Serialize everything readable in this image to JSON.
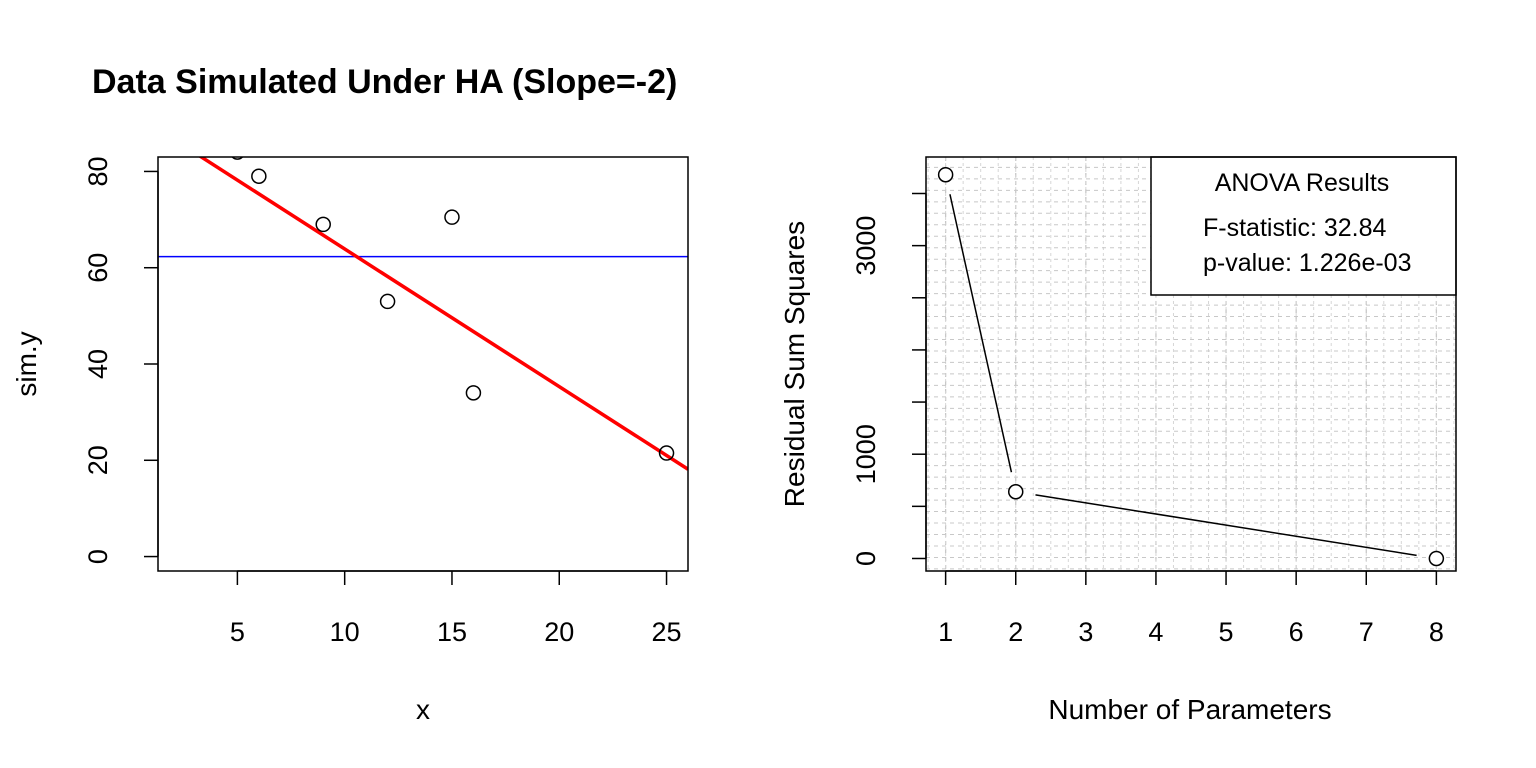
{
  "chart_data": [
    {
      "type": "scatter",
      "title": "Data Simulated Under HA (Slope=-2)",
      "xlabel": "x",
      "ylabel": "sim.y",
      "xlim": [
        1.3,
        26.0
      ],
      "ylim": [
        -3.0,
        83.0
      ],
      "xticks": [
        5,
        10,
        15,
        20,
        25
      ],
      "yticks": [
        0,
        20,
        40,
        60,
        80
      ],
      "points": [
        {
          "x": 5,
          "y": 84
        },
        {
          "x": 6,
          "y": 79
        },
        {
          "x": 9,
          "y": 69
        },
        {
          "x": 12,
          "y": 53
        },
        {
          "x": 15,
          "y": 70.5
        },
        {
          "x": 16,
          "y": 34
        },
        {
          "x": 25,
          "y": 21.5
        }
      ],
      "hline": {
        "y": 62.3,
        "color": "#0000ff"
      },
      "fit_line": {
        "intercept": 92.5,
        "slope": -2.86,
        "color": "#ff0000"
      }
    },
    {
      "type": "line",
      "title": "",
      "xlabel": "Number of Parameters",
      "ylabel": "Residual Sum Squares",
      "xlim": [
        0.72,
        8.28
      ],
      "ylim": [
        -120,
        3850
      ],
      "xticks": [
        1,
        2,
        3,
        4,
        5,
        6,
        7,
        8
      ],
      "yticks": [
        0,
        1000,
        2000,
        3000
      ],
      "ytick_labels": [
        "0",
        "1000",
        "",
        "3000"
      ],
      "grid": true,
      "x": [
        1,
        2,
        8
      ],
      "y": [
        3680,
        640,
        0
      ],
      "legend": {
        "position": "top-right",
        "title": "ANOVA Results",
        "lines": [
          "F-statistic: 32.84",
          "p-value: 1.226e-03"
        ]
      }
    }
  ]
}
